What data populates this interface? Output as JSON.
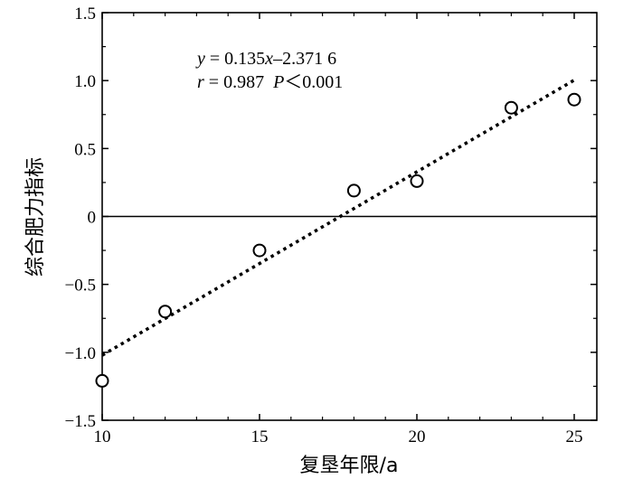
{
  "chart_data": {
    "type": "scatter",
    "xlabel": "复垦年限/a",
    "ylabel": "综合肥力指标",
    "xlim": [
      10,
      26
    ],
    "ylim": [
      -1.5,
      1.5
    ],
    "xticks": [
      "10",
      "15",
      "20",
      "25"
    ],
    "xtick_values": [
      10,
      15,
      20,
      25
    ],
    "yticks": [
      "1.5",
      "1.0",
      "0.5",
      "0",
      "−0.5",
      "−1.0",
      "−1.5"
    ],
    "ytick_values": [
      1.5,
      1.0,
      0.5,
      0,
      -0.5,
      -1.0,
      -1.5
    ],
    "grid": false,
    "zero_line": true,
    "series": [
      {
        "marker": "open-circle",
        "points": [
          {
            "x": 10,
            "y": -1.21
          },
          {
            "x": 12,
            "y": -0.7
          },
          {
            "x": 15,
            "y": -0.25
          },
          {
            "x": 18,
            "y": 0.19
          },
          {
            "x": 20,
            "y": 0.26
          },
          {
            "x": 23,
            "y": 0.8
          },
          {
            "x": 25,
            "y": 0.86
          }
        ]
      }
    ],
    "fit_line": {
      "style": "dotted",
      "slope": 0.135,
      "intercept": -2.3716,
      "x_range": [
        10,
        25
      ]
    },
    "annotation": {
      "y_var": "y",
      "eq_rhs_a": " = 0.135",
      "x_var": "x",
      "eq_rhs_b": "–2.371 6",
      "r_var": "r",
      "r_rhs": " = 0.987  ",
      "p_var": "P",
      "p_rhs": "＜0.001"
    }
  }
}
